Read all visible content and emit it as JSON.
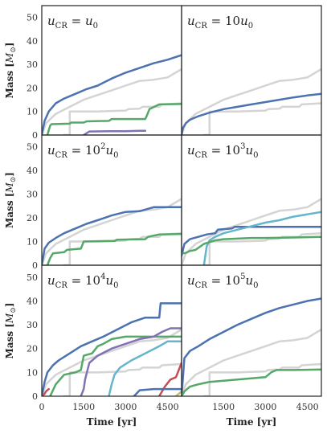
{
  "chart_data": {
    "type": "line",
    "layout": "3x2 grid, shared axes",
    "xlabel": "Time [yr]",
    "ylabel": "Mass [M_⊙]",
    "ylabel_main": "Mass [",
    "ylabel_unit": "M",
    "ylabel_sub": "⊙",
    "ylabel_end": "]",
    "xlim": [
      0,
      5000
    ],
    "ylim": [
      0,
      55
    ],
    "xticks": [
      "0",
      "1500",
      "3000",
      "4500"
    ],
    "yticks": [
      "0",
      "10",
      "20",
      "30",
      "40",
      "50"
    ],
    "grid": false,
    "colors": {
      "reference": "#d4d4d4",
      "blue": "#4c72b0",
      "green": "#55a868",
      "purple": "#8172b2",
      "red": "#c44e52",
      "cyan": "#64b5cd",
      "orange": "#ccb974"
    },
    "panels": [
      {
        "label": {
          "pre": "u",
          "sub": "CR",
          "mid": " = ",
          "coef": "",
          "exp": "",
          "post": "u",
          "postsub": "0"
        },
        "series": [
          {
            "color": "reference",
            "width": 2.5,
            "x": [
              0,
              150,
              500,
              1000,
              1500,
              2000,
              2500,
              3000,
              3500,
              4000,
              4500,
              5000
            ],
            "y": [
              0,
              5,
              9,
              12,
              15,
              17,
              19,
              21,
              23,
              23.5,
              24.5,
              28
            ]
          },
          {
            "color": "reference",
            "width": 2.5,
            "x": [
              800,
              1000,
              1000,
              2000,
              2500,
              3000,
              3100,
              3500,
              3600,
              4200,
              4300,
              5000
            ],
            "y": [
              0,
              0,
              10,
              10,
              10.2,
              10.4,
              11,
              11.2,
              12,
              12,
              13,
              13.5
            ]
          },
          {
            "color": "blue",
            "width": 2.5,
            "x": [
              0,
              100,
              250,
              500,
              800,
              1200,
              1600,
              2000,
              2500,
              3000,
              3500,
              4000,
              4500,
              5000
            ],
            "y": [
              0,
              6,
              10,
              13.5,
              15.5,
              17.5,
              19.5,
              21,
              24,
              26.5,
              28.5,
              30.5,
              32,
              34
            ]
          },
          {
            "color": "green",
            "width": 2.5,
            "x": [
              200,
              300,
              350,
              1000,
              1050,
              1500,
              1600,
              2400,
              2500,
              3700,
              3750,
              3850,
              4200,
              5000
            ],
            "y": [
              0,
              4,
              4.6,
              4.8,
              5.3,
              5.3,
              5.8,
              6,
              6.8,
              6.8,
              8,
              11,
              13,
              13.2
            ]
          },
          {
            "color": "purple",
            "width": 2.5,
            "x": [
              1500,
              1700,
              2500,
              3000,
              3500,
              3700
            ],
            "y": [
              0,
              1.5,
              1.6,
              1.6,
              1.8,
              1.8
            ]
          }
        ]
      },
      {
        "label": {
          "pre": "u",
          "sub": "CR",
          "mid": " = ",
          "coef": "10",
          "exp": "",
          "post": "u",
          "postsub": "0"
        },
        "series": [
          {
            "color": "reference",
            "width": 2.5,
            "x": [
              0,
              150,
              500,
              1000,
              1500,
              2000,
              2500,
              3000,
              3500,
              4000,
              4500,
              5000
            ],
            "y": [
              0,
              5,
              9,
              12,
              15,
              17,
              19,
              21,
              23,
              23.5,
              24.5,
              28
            ]
          },
          {
            "color": "reference",
            "width": 2.5,
            "x": [
              800,
              1000,
              1000,
              2000,
              2500,
              3000,
              3100,
              3500,
              3600,
              4200,
              4300,
              5000
            ],
            "y": [
              0,
              0,
              10,
              10,
              10.2,
              10.4,
              11,
              11.2,
              12,
              12,
              13,
              13.5
            ]
          },
          {
            "color": "blue",
            "width": 2.5,
            "x": [
              0,
              50,
              150,
              300,
              600,
              1000,
              1500,
              2000,
              2500,
              3000,
              3500,
              4000,
              4500,
              5000
            ],
            "y": [
              0,
              3,
              5,
              6.5,
              8,
              9.5,
              11,
              12,
              13,
              14,
              15,
              16,
              16.8,
              17.5
            ]
          }
        ]
      },
      {
        "label": {
          "pre": "u",
          "sub": "CR",
          "mid": " = ",
          "coef": "10",
          "exp": "2",
          "post": "u",
          "postsub": "0"
        },
        "series": [
          {
            "color": "reference",
            "width": 2.5,
            "x": [
              0,
              150,
              500,
              1000,
              1500,
              2000,
              2500,
              3000,
              3500,
              4000,
              4500,
              5000
            ],
            "y": [
              0,
              5,
              9,
              12,
              15,
              17,
              19,
              21,
              23,
              23.5,
              24.5,
              28
            ]
          },
          {
            "color": "reference",
            "width": 2.5,
            "x": [
              800,
              1000,
              1000,
              2000,
              2500,
              3000,
              3100,
              3500,
              3600,
              4200,
              4300,
              5000
            ],
            "y": [
              0,
              0,
              10,
              10,
              10.2,
              10.4,
              11,
              11.2,
              12,
              12,
              13,
              13.5
            ]
          },
          {
            "color": "blue",
            "width": 2.5,
            "x": [
              0,
              100,
              250,
              500,
              800,
              1200,
              1600,
              2000,
              2500,
              3000,
              3500,
              3700,
              4000,
              4500,
              5000
            ],
            "y": [
              0,
              7,
              9.5,
              11.5,
              13.5,
              15.5,
              17.5,
              19,
              21,
              22.5,
              22.8,
              23.5,
              24.5,
              24.5,
              24.5
            ]
          },
          {
            "color": "green",
            "width": 2.5,
            "x": [
              200,
              300,
              400,
              800,
              900,
              1400,
              1500,
              2600,
              2700,
              3700,
              3800,
              4200,
              5000
            ],
            "y": [
              0,
              3,
              5,
              5.5,
              6.5,
              7,
              10,
              10.3,
              10.8,
              11,
              12,
              13,
              13.2
            ]
          }
        ]
      },
      {
        "label": {
          "pre": "u",
          "sub": "CR",
          "mid": " = ",
          "coef": "10",
          "exp": "3",
          "post": "u",
          "postsub": "0"
        },
        "series": [
          {
            "color": "reference",
            "width": 2.5,
            "x": [
              0,
              150,
              500,
              1000,
              1500,
              2000,
              2500,
              3000,
              3500,
              4000,
              4500,
              5000
            ],
            "y": [
              0,
              5,
              9,
              12,
              15,
              17,
              19,
              21,
              23,
              23.5,
              24.5,
              28
            ]
          },
          {
            "color": "reference",
            "width": 2.5,
            "x": [
              800,
              1000,
              1000,
              2000,
              2500,
              3000,
              3100,
              3500,
              3600,
              4200,
              4300,
              5000
            ],
            "y": [
              0,
              0,
              10,
              10,
              10.2,
              10.4,
              11,
              11.2,
              12,
              12,
              13,
              13.5
            ]
          },
          {
            "color": "blue",
            "width": 2.5,
            "x": [
              0,
              100,
              300,
              600,
              900,
              1200,
              1300,
              1800,
              1900,
              5000
            ],
            "y": [
              4,
              9,
              11,
              12,
              13,
              13.5,
              15,
              15.5,
              16.2,
              16.2
            ]
          },
          {
            "color": "cyan",
            "width": 2.5,
            "x": [
              800,
              900,
              1000,
              1200,
              1500,
              2000,
              2500,
              3000,
              3500,
              4000,
              4500,
              5000
            ],
            "y": [
              0,
              8,
              10.5,
              12,
              13.5,
              15,
              16.5,
              18,
              19,
              20.5,
              21.5,
              22.5
            ]
          },
          {
            "color": "green",
            "width": 2.5,
            "x": [
              0,
              150,
              300,
              500,
              800,
              1200,
              1500,
              2500,
              3000,
              4000,
              5000
            ],
            "y": [
              5,
              5.2,
              6,
              6.5,
              9,
              10.5,
              11,
              11.5,
              11.5,
              11.7,
              12
            ]
          }
        ]
      },
      {
        "label": {
          "pre": "u",
          "sub": "CR",
          "mid": " = ",
          "coef": "10",
          "exp": "4",
          "post": "u",
          "postsub": "0"
        },
        "series": [
          {
            "color": "reference",
            "width": 2.5,
            "x": [
              0,
              150,
              500,
              1000,
              1500,
              2000,
              2500,
              3000,
              3500,
              4000,
              4500,
              5000
            ],
            "y": [
              0,
              5,
              9,
              12,
              15,
              17,
              19,
              21,
              23,
              23.5,
              24.5,
              28
            ]
          },
          {
            "color": "reference",
            "width": 2.5,
            "x": [
              800,
              1000,
              1000,
              2000,
              2500,
              3000,
              3100,
              3500,
              3600,
              4200,
              4300,
              5000
            ],
            "y": [
              0,
              0,
              10,
              10,
              10.2,
              10.4,
              11,
              11.2,
              12,
              12,
              13,
              13.5
            ]
          },
          {
            "color": "blue",
            "width": 2.5,
            "x": [
              0,
              100,
              200,
              400,
              600,
              1000,
              1400,
              1800,
              2200,
              2700,
              3200,
              3700,
              4200,
              4250,
              5000
            ],
            "y": [
              0,
              6,
              10,
              13,
              15,
              18,
              21,
              23,
              25,
              28,
              31,
              33,
              33,
              39,
              39
            ]
          },
          {
            "color": "green",
            "width": 2.5,
            "x": [
              300,
              500,
              800,
              1200,
              1400,
              1500,
              1800,
              2000,
              2200,
              2500,
              3000,
              3500,
              4000,
              4500,
              5000
            ],
            "y": [
              0,
              5,
              9,
              10,
              11,
              17,
              18,
              21,
              22,
              24,
              25,
              25,
              25,
              25,
              25
            ]
          },
          {
            "color": "purple",
            "width": 2.5,
            "x": [
              1400,
              1500,
              1550,
              1700,
              2000,
              2500,
              3000,
              3500,
              4000,
              4300,
              4600,
              5000
            ],
            "y": [
              0,
              3,
              7,
              14,
              17,
              20,
              22,
              24,
              25,
              27,
              28.5,
              28.5
            ]
          },
          {
            "color": "cyan",
            "width": 2.5,
            "x": [
              2400,
              2500,
              2600,
              2800,
              3200,
              3700,
              4200,
              4500,
              5000
            ],
            "y": [
              0,
              5,
              9,
              12,
              15,
              18,
              21,
              23,
              23
            ]
          },
          {
            "color": "red",
            "width": 2.5,
            "x": [
              0,
              100,
              150,
              250
            ],
            "y": [
              0,
              1,
              2,
              3
            ]
          },
          {
            "color": "red",
            "width": 2.5,
            "x": [
              4200,
              4400,
              4600,
              4800,
              4900,
              5000
            ],
            "y": [
              0,
              4,
              7,
              8,
              11,
              14
            ]
          },
          {
            "color": "blue",
            "width": 2.5,
            "x": [
              3300,
              3500,
              4000,
              4500,
              5000
            ],
            "y": [
              0,
              2.5,
              3,
              3,
              3
            ]
          },
          {
            "color": "orange",
            "width": 2.5,
            "x": [
              4800,
              4900,
              5000
            ],
            "y": [
              0,
              1,
              2
            ]
          }
        ]
      },
      {
        "label": {
          "pre": "u",
          "sub": "CR",
          "mid": " = ",
          "coef": "10",
          "exp": "5",
          "post": "u",
          "postsub": "0"
        },
        "series": [
          {
            "color": "reference",
            "width": 2.5,
            "x": [
              0,
              150,
              500,
              1000,
              1500,
              2000,
              2500,
              3000,
              3500,
              4000,
              4500,
              5000
            ],
            "y": [
              0,
              5,
              9,
              12,
              15,
              17,
              19,
              21,
              23,
              23.5,
              24.5,
              28
            ]
          },
          {
            "color": "reference",
            "width": 2.5,
            "x": [
              800,
              1000,
              1000,
              2000,
              2500,
              3000,
              3100,
              3500,
              3600,
              4200,
              4300,
              5000
            ],
            "y": [
              0,
              0,
              10,
              10,
              10.2,
              10.4,
              11,
              11.2,
              12,
              12,
              13,
              13.5
            ]
          },
          {
            "color": "blue",
            "width": 2.5,
            "x": [
              0,
              100,
              300,
              600,
              1000,
              1500,
              2000,
              2500,
              3000,
              3500,
              4000,
              4500,
              5000
            ],
            "y": [
              0,
              16,
              19,
              21,
              24,
              27,
              30,
              32.5,
              35,
              37,
              38.5,
              40,
              41
            ]
          },
          {
            "color": "green",
            "width": 2.5,
            "x": [
              0,
              100,
              300,
              600,
              1000,
              1500,
              2000,
              2500,
              3000,
              3200,
              3400,
              4000,
              5000
            ],
            "y": [
              0,
              2,
              4,
              5,
              6,
              6.5,
              7,
              7.5,
              8,
              10,
              11,
              11,
              11.2
            ]
          }
        ]
      }
    ]
  }
}
